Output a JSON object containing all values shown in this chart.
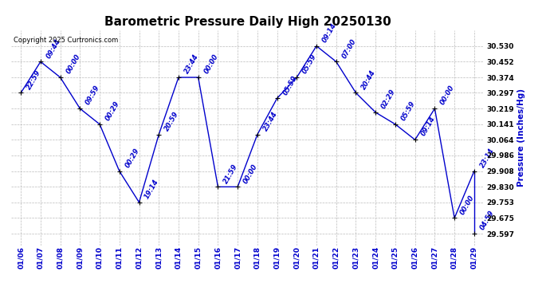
{
  "title": "Barometric Pressure Daily High 20250130",
  "ylabel": "Pressure (Inches/Hg)",
  "copyright": "Copyright 2025 Curtronics.com",
  "background_color": "#ffffff",
  "line_color": "#0000cc",
  "point_color": "#000000",
  "label_color": "#0000cc",
  "grid_color": "#bbbbbb",
  "dates": [
    "01/06",
    "01/07",
    "01/08",
    "01/09",
    "01/10",
    "01/11",
    "01/12",
    "01/13",
    "01/14",
    "01/15",
    "01/16",
    "01/17",
    "01/18",
    "01/19",
    "01/20",
    "01/21",
    "01/22",
    "01/23",
    "01/24",
    "01/25",
    "01/26",
    "01/27",
    "01/28",
    "01/29"
  ],
  "values": [
    30.297,
    30.452,
    30.374,
    30.219,
    30.141,
    29.908,
    29.753,
    30.09,
    30.374,
    30.374,
    29.83,
    29.83,
    30.09,
    30.27,
    30.374,
    30.53,
    30.452,
    30.297,
    30.2,
    30.141,
    30.064,
    30.219,
    29.675,
    29.908
  ],
  "time_labels": [
    "22:59",
    "09:44",
    "00:00",
    "09:59",
    "00:29",
    "00:29",
    "19:14",
    "20:59",
    "23:44",
    "00:00",
    "21:59",
    "00:00",
    "23:44",
    "05:59",
    "05:59",
    "09:14",
    "07:00",
    "20:44",
    "02:29",
    "05:59",
    "09:14",
    "00:00",
    "00:00",
    "23:14"
  ],
  "extra_point_value": 29.597,
  "extra_point_label": "04:59",
  "ylim_min": 29.54,
  "ylim_max": 30.61,
  "ytick_values": [
    30.53,
    30.452,
    30.374,
    30.297,
    30.219,
    30.141,
    30.064,
    29.986,
    29.908,
    29.83,
    29.753,
    29.675,
    29.597
  ],
  "title_fontsize": 11,
  "label_fontsize": 6.0,
  "tick_fontsize": 6.5,
  "ylabel_fontsize": 7.5
}
